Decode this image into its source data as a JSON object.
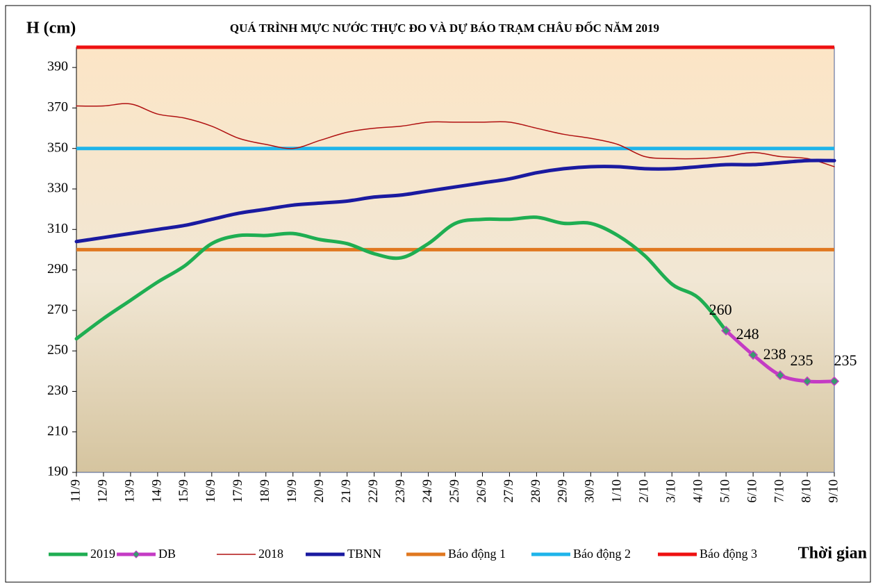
{
  "chart_data": {
    "type": "line",
    "title": "QUÁ TRÌNH MỰC NƯỚC THỰC ĐO VÀ DỰ BÁO TRẠM CHÂU ĐỐC NĂM 2019",
    "ylabel": "H (cm)",
    "xlabel": "Thời gian",
    "categories": [
      "11/9",
      "12/9",
      "13/9",
      "14/9",
      "15/9",
      "16/9",
      "17/9",
      "18/9",
      "19/9",
      "20/9",
      "21/9",
      "22/9",
      "23/9",
      "24/9",
      "25/9",
      "26/9",
      "27/9",
      "28/9",
      "29/9",
      "30/9",
      "1/10",
      "2/10",
      "3/10",
      "4/10",
      "5/10",
      "6/10",
      "7/10",
      "8/10",
      "9/10"
    ],
    "ylim": [
      190,
      400
    ],
    "yticks": [
      190,
      210,
      230,
      250,
      270,
      290,
      310,
      330,
      350,
      370,
      390
    ],
    "series": [
      {
        "name": "2019",
        "color": "#1fae52",
        "width": 5,
        "values": [
          256,
          266,
          275,
          284,
          292,
          303,
          307,
          307,
          308,
          305,
          303,
          298,
          296,
          303,
          313,
          315,
          315,
          316,
          313,
          313,
          307,
          297,
          283,
          276,
          260,
          null,
          null,
          null,
          null
        ]
      },
      {
        "name": "DB",
        "color": "#c43bc4",
        "width": 5,
        "marker": true,
        "values": [
          null,
          null,
          null,
          null,
          null,
          null,
          null,
          null,
          null,
          null,
          null,
          null,
          null,
          null,
          null,
          null,
          null,
          null,
          null,
          null,
          null,
          null,
          null,
          null,
          260,
          248,
          238,
          235,
          235
        ]
      },
      {
        "name": "2018",
        "color": "#b01010",
        "width": 1.5,
        "values": [
          371,
          371,
          372,
          367,
          365,
          361,
          355,
          352,
          350,
          354,
          358,
          360,
          361,
          363,
          363,
          363,
          363,
          360,
          357,
          355,
          352,
          346,
          345,
          345,
          346,
          348,
          346,
          345,
          341
        ]
      },
      {
        "name": "TBNN",
        "color": "#1a1aa0",
        "width": 5,
        "values": [
          304,
          306,
          308,
          310,
          312,
          315,
          318,
          320,
          322,
          323,
          324,
          326,
          327,
          329,
          331,
          333,
          335,
          338,
          340,
          341,
          341,
          340,
          340,
          341,
          342,
          342,
          343,
          344,
          344
        ]
      }
    ],
    "alarms": [
      {
        "name": "Báo động 1",
        "color": "#e07820",
        "value": 300
      },
      {
        "name": "Báo động 2",
        "color": "#1eb4ea",
        "value": 350
      },
      {
        "name": "Báo động 3",
        "color": "#ee1111",
        "value": 400
      }
    ]
  }
}
